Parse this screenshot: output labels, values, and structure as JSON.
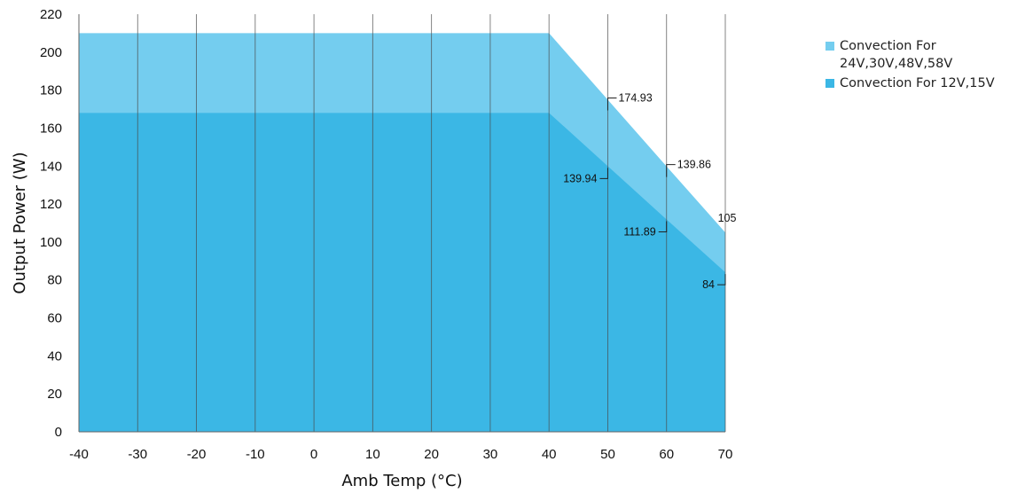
{
  "colors": {
    "upper_area": "#74CDEF",
    "lower_area": "#3BB7E5",
    "gridline": "#4a4a4a",
    "text": "#111111"
  },
  "chart_data": {
    "type": "area",
    "title": "",
    "xlabel": "Amb Temp (°C)",
    "ylabel": "Output Power (W)",
    "xlim": [
      -40,
      70
    ],
    "ylim": [
      0,
      220
    ],
    "x_ticks": [
      -40,
      -30,
      -20,
      -10,
      0,
      10,
      20,
      30,
      40,
      50,
      60,
      70
    ],
    "y_ticks": [
      0,
      20,
      40,
      60,
      80,
      100,
      120,
      140,
      160,
      180,
      200,
      220
    ],
    "grid": {
      "vertical": true,
      "horizontal": false
    },
    "legend_position": "right",
    "series": [
      {
        "name": "Convection For 24V,30V,48V,58V",
        "color": "#74CDEF",
        "x": [
          -40,
          40,
          50,
          60,
          70
        ],
        "y": [
          210,
          210,
          174.93,
          139.86,
          105
        ]
      },
      {
        "name": "Convection For 12V,15V",
        "color": "#3BB7E5",
        "x": [
          -40,
          40,
          50,
          60,
          70
        ],
        "y": [
          168,
          168,
          139.94,
          111.89,
          84
        ]
      }
    ],
    "annotations": [
      {
        "text": "174.93",
        "x": 50,
        "y": 174.93,
        "side": "right"
      },
      {
        "text": "139.86",
        "x": 60,
        "y": 139.86,
        "side": "right"
      },
      {
        "text": "105",
        "x": 70,
        "y": 105,
        "side": "top"
      },
      {
        "text": "139.94",
        "x": 50,
        "y": 139.94,
        "side": "left"
      },
      {
        "text": "111.89",
        "x": 60,
        "y": 111.89,
        "side": "left"
      },
      {
        "text": "84",
        "x": 70,
        "y": 84,
        "side": "left"
      }
    ]
  },
  "legend": {
    "items": [
      {
        "line1": "Convection For",
        "line2": "24V,30V,48V,58V",
        "color": "#74CDEF"
      },
      {
        "line1": "Convection For 12V,15V",
        "line2": "",
        "color": "#3BB7E5"
      }
    ]
  }
}
